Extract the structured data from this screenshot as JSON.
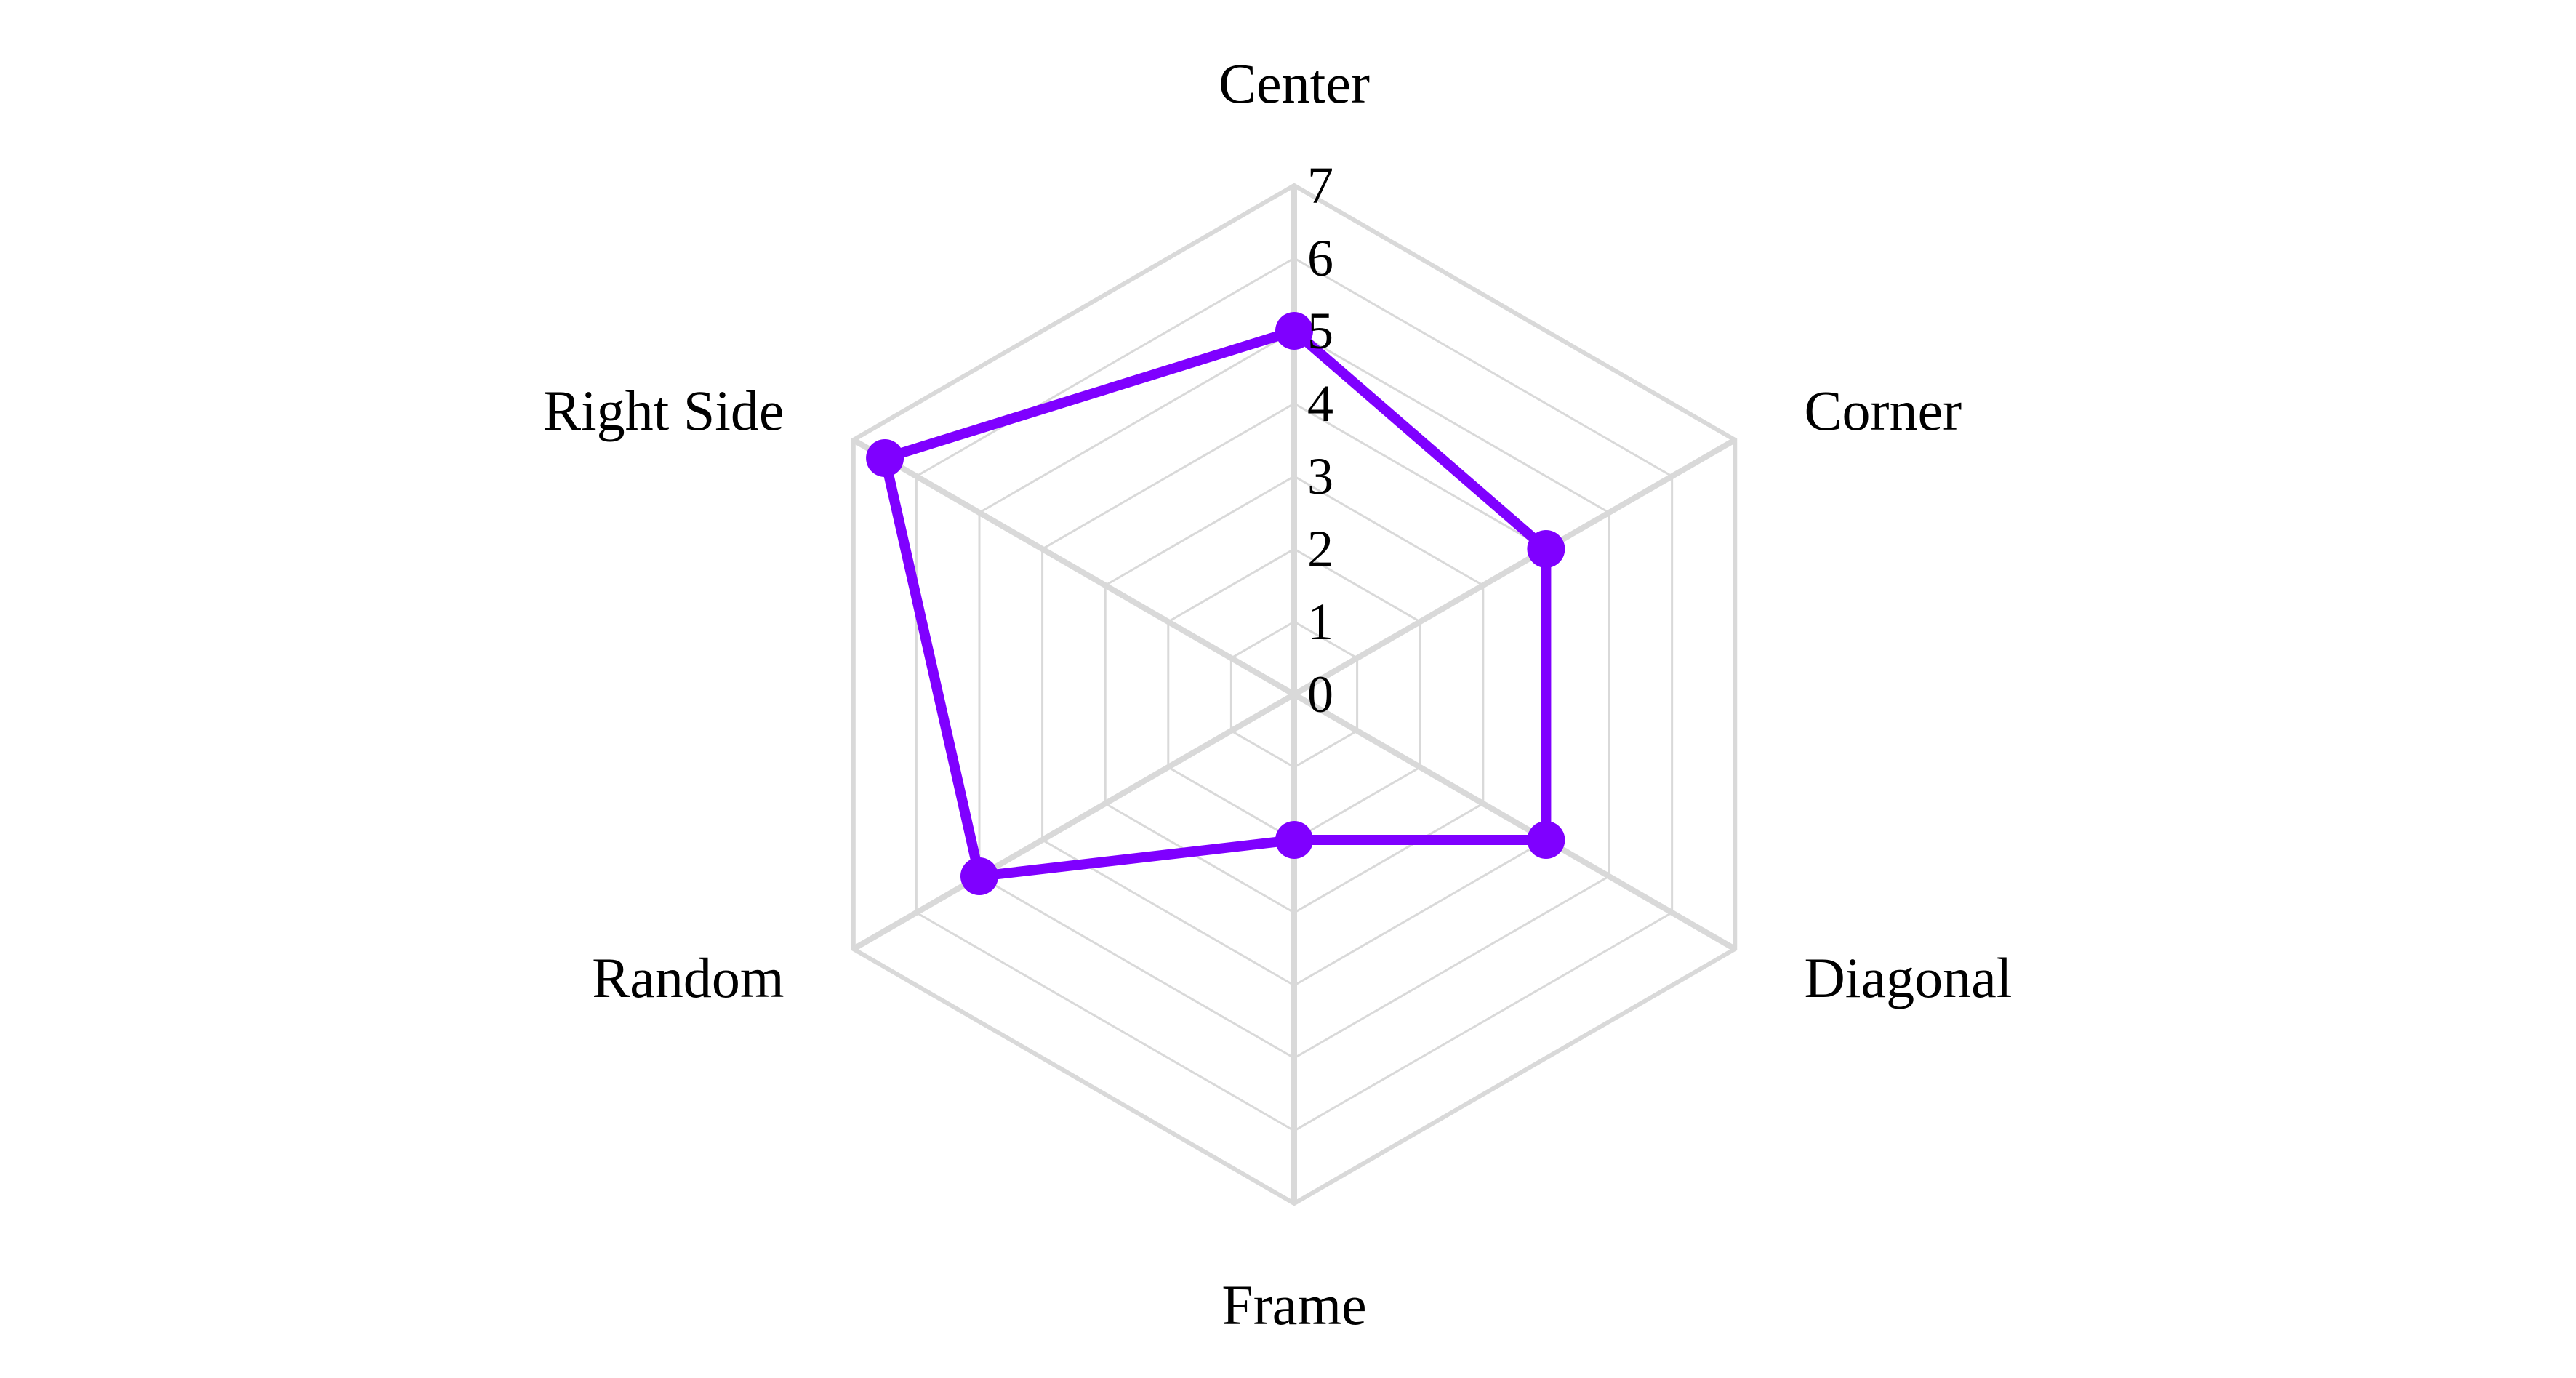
{
  "chart_data": {
    "type": "radar",
    "categories": [
      "Center",
      "Corner",
      "Diagonal",
      "Frame",
      "Random",
      "Right Side"
    ],
    "series": [
      {
        "values": [
          5.0,
          4.0,
          4.0,
          2.0,
          5.0,
          6.5
        ]
      }
    ],
    "rlim": [
      0,
      7
    ],
    "r_ticks": [
      "0",
      "1",
      "2",
      "3",
      "4",
      "5",
      "6",
      "7"
    ],
    "grid": true,
    "legend": "none",
    "colors": {
      "series": "#7f00ff",
      "grid": "#d9d9d9",
      "text": "#000000",
      "background": "#ffffff"
    }
  }
}
